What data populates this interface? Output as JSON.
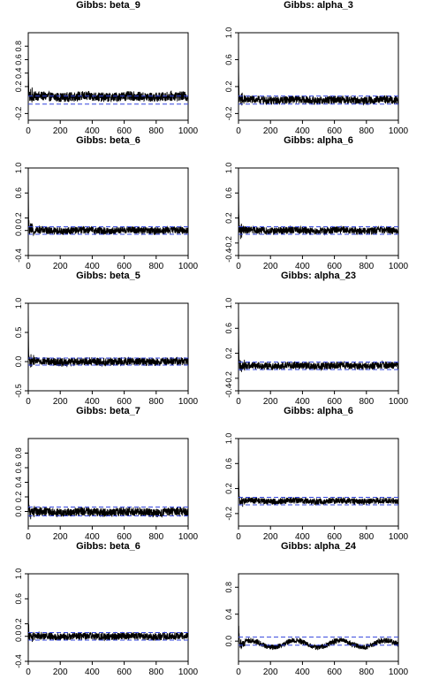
{
  "chart_data": [
    {
      "type": "line",
      "title": "Gibbs: beta_9",
      "xlabel": "",
      "ylabel": "",
      "xlim": [
        0,
        1000
      ],
      "ylim": [
        -0.3,
        1.0
      ],
      "x_ticks": [
        0,
        200,
        400,
        600,
        800,
        1000
      ],
      "y_ticks": [
        -0.2,
        0.2,
        0.4,
        0.6,
        0.8
      ],
      "y_tick_labels": [
        "-0.2",
        "0.2",
        "0.4",
        "0.6",
        "0.8"
      ],
      "conf_bounds": [
        -0.06,
        0.06
      ],
      "center_value": 0.05,
      "noise_amplitude": 0.07,
      "oscillation": 0.01
    },
    {
      "type": "line",
      "title": "Gibbs: alpha_3",
      "xlabel": "",
      "ylabel": "",
      "xlim": [
        0,
        1000
      ],
      "ylim": [
        -0.3,
        1.0
      ],
      "x_ticks": [
        0,
        200,
        400,
        600,
        800,
        1000
      ],
      "y_ticks": [
        -0.2,
        0.2,
        0.6,
        1.0
      ],
      "y_tick_labels": [
        "-0.2",
        "0.2",
        "0.6",
        "1.0"
      ],
      "conf_bounds": [
        -0.06,
        0.06
      ],
      "center_value": 0.0,
      "noise_amplitude": 0.06,
      "oscillation": 0.01
    },
    {
      "type": "line",
      "title": "Gibbs: beta_6",
      "xlabel": "",
      "ylabel": "",
      "xlim": [
        0,
        1000
      ],
      "ylim": [
        -0.4,
        1.0
      ],
      "x_ticks": [
        0,
        200,
        400,
        600,
        800,
        1000
      ],
      "y_ticks": [
        -0.4,
        0.0,
        0.2,
        0.6,
        1.0
      ],
      "y_tick_labels": [
        "-0.4",
        "0.0",
        "0.2",
        "0.6",
        "1.0"
      ],
      "conf_bounds": [
        -0.06,
        0.06
      ],
      "center_value": 0.0,
      "noise_amplitude": 0.06,
      "oscillation": 0.01
    },
    {
      "type": "line",
      "title": "Gibbs: alpha_6",
      "xlabel": "",
      "ylabel": "",
      "xlim": [
        0,
        1000
      ],
      "ylim": [
        -0.4,
        1.0
      ],
      "x_ticks": [
        0,
        200,
        400,
        600,
        800,
        1000
      ],
      "y_ticks": [
        -0.4,
        -0.2,
        0.2,
        0.6,
        1.0
      ],
      "y_tick_labels": [
        "-0.4",
        "-0.2",
        "0.2",
        "0.6",
        "1.0"
      ],
      "conf_bounds": [
        -0.06,
        0.06
      ],
      "center_value": 0.0,
      "noise_amplitude": 0.06,
      "oscillation": 0.01
    },
    {
      "type": "line",
      "title": "Gibbs: beta_5",
      "xlabel": "",
      "ylabel": "",
      "xlim": [
        0,
        1000
      ],
      "ylim": [
        -0.5,
        1.0
      ],
      "x_ticks": [
        0,
        200,
        400,
        600,
        800,
        1000
      ],
      "y_ticks": [
        -0.5,
        0.0,
        0.5,
        1.0
      ],
      "y_tick_labels": [
        "-0.5",
        "0.0",
        "0.5",
        "1.0"
      ],
      "conf_bounds": [
        -0.06,
        0.06
      ],
      "center_value": 0.0,
      "noise_amplitude": 0.07,
      "oscillation": 0.01
    },
    {
      "type": "line",
      "title": "Gibbs: alpha_23",
      "xlabel": "",
      "ylabel": "",
      "xlim": [
        0,
        1000
      ],
      "ylim": [
        -0.4,
        1.0
      ],
      "x_ticks": [
        0,
        200,
        400,
        600,
        800,
        1000
      ],
      "y_ticks": [
        -0.4,
        -0.2,
        0.2,
        0.6,
        1.0
      ],
      "y_tick_labels": [
        "-0.4",
        "-0.2",
        "0.2",
        "0.6",
        "1.0"
      ],
      "conf_bounds": [
        -0.06,
        0.06
      ],
      "center_value": 0.0,
      "noise_amplitude": 0.06,
      "oscillation": 0.01
    },
    {
      "type": "line",
      "title": "Gibbs: beta_7",
      "xlabel": "",
      "ylabel": "",
      "xlim": [
        0,
        1000
      ],
      "ylim": [
        -0.2,
        1.0
      ],
      "x_ticks": [
        0,
        200,
        400,
        600,
        800,
        1000
      ],
      "y_ticks": [
        0.0,
        0.2,
        0.4,
        0.6,
        0.8
      ],
      "y_tick_labels": [
        "0.0",
        "0.2",
        "0.4",
        "0.6",
        "0.8"
      ],
      "conf_bounds": [
        -0.06,
        0.06
      ],
      "center_value": -0.01,
      "noise_amplitude": 0.06,
      "oscillation": 0.01
    },
    {
      "type": "line",
      "title": "Gibbs: alpha_6",
      "xlabel": "",
      "ylabel": "",
      "xlim": [
        0,
        1000
      ],
      "ylim": [
        -0.4,
        1.0
      ],
      "x_ticks": [
        0,
        200,
        400,
        600,
        800,
        1000
      ],
      "y_ticks": [
        -0.2,
        0.2,
        0.6,
        1.0
      ],
      "y_tick_labels": [
        "-0.2",
        "0.2",
        "0.6",
        "1.0"
      ],
      "conf_bounds": [
        -0.06,
        0.06
      ],
      "center_value": 0.0,
      "noise_amplitude": 0.05,
      "oscillation": 0.01
    },
    {
      "type": "line",
      "title": "Gibbs: beta_6",
      "xlabel": "",
      "ylabel": "",
      "xlim": [
        0,
        1000
      ],
      "ylim": [
        -0.4,
        1.0
      ],
      "x_ticks": [
        0,
        200,
        400,
        600,
        800,
        1000
      ],
      "y_ticks": [
        -0.4,
        0.0,
        0.2,
        0.6,
        1.0
      ],
      "y_tick_labels": [
        "-0.4",
        "0.0",
        "0.2",
        "0.6",
        "1.0"
      ],
      "conf_bounds": [
        -0.06,
        0.06
      ],
      "center_value": 0.0,
      "noise_amplitude": 0.06,
      "oscillation": 0.01
    },
    {
      "type": "line",
      "title": "Gibbs: alpha_24",
      "xlabel": "",
      "ylabel": "",
      "xlim": [
        0,
        1000
      ],
      "ylim": [
        -0.3,
        1.0
      ],
      "x_ticks": [
        0,
        200,
        400,
        600,
        800,
        1000
      ],
      "y_ticks": [
        0.0,
        0.4,
        0.8
      ],
      "y_tick_labels": [
        "0.0",
        "0.4",
        "0.8"
      ],
      "conf_bounds": [
        -0.06,
        0.06
      ],
      "center_value": -0.04,
      "noise_amplitude": 0.04,
      "oscillation": 0.05
    }
  ],
  "colors": {
    "trace": "#000000",
    "confidence_band": "#3344dd",
    "axes": "#000000",
    "background": "#ffffff"
  }
}
